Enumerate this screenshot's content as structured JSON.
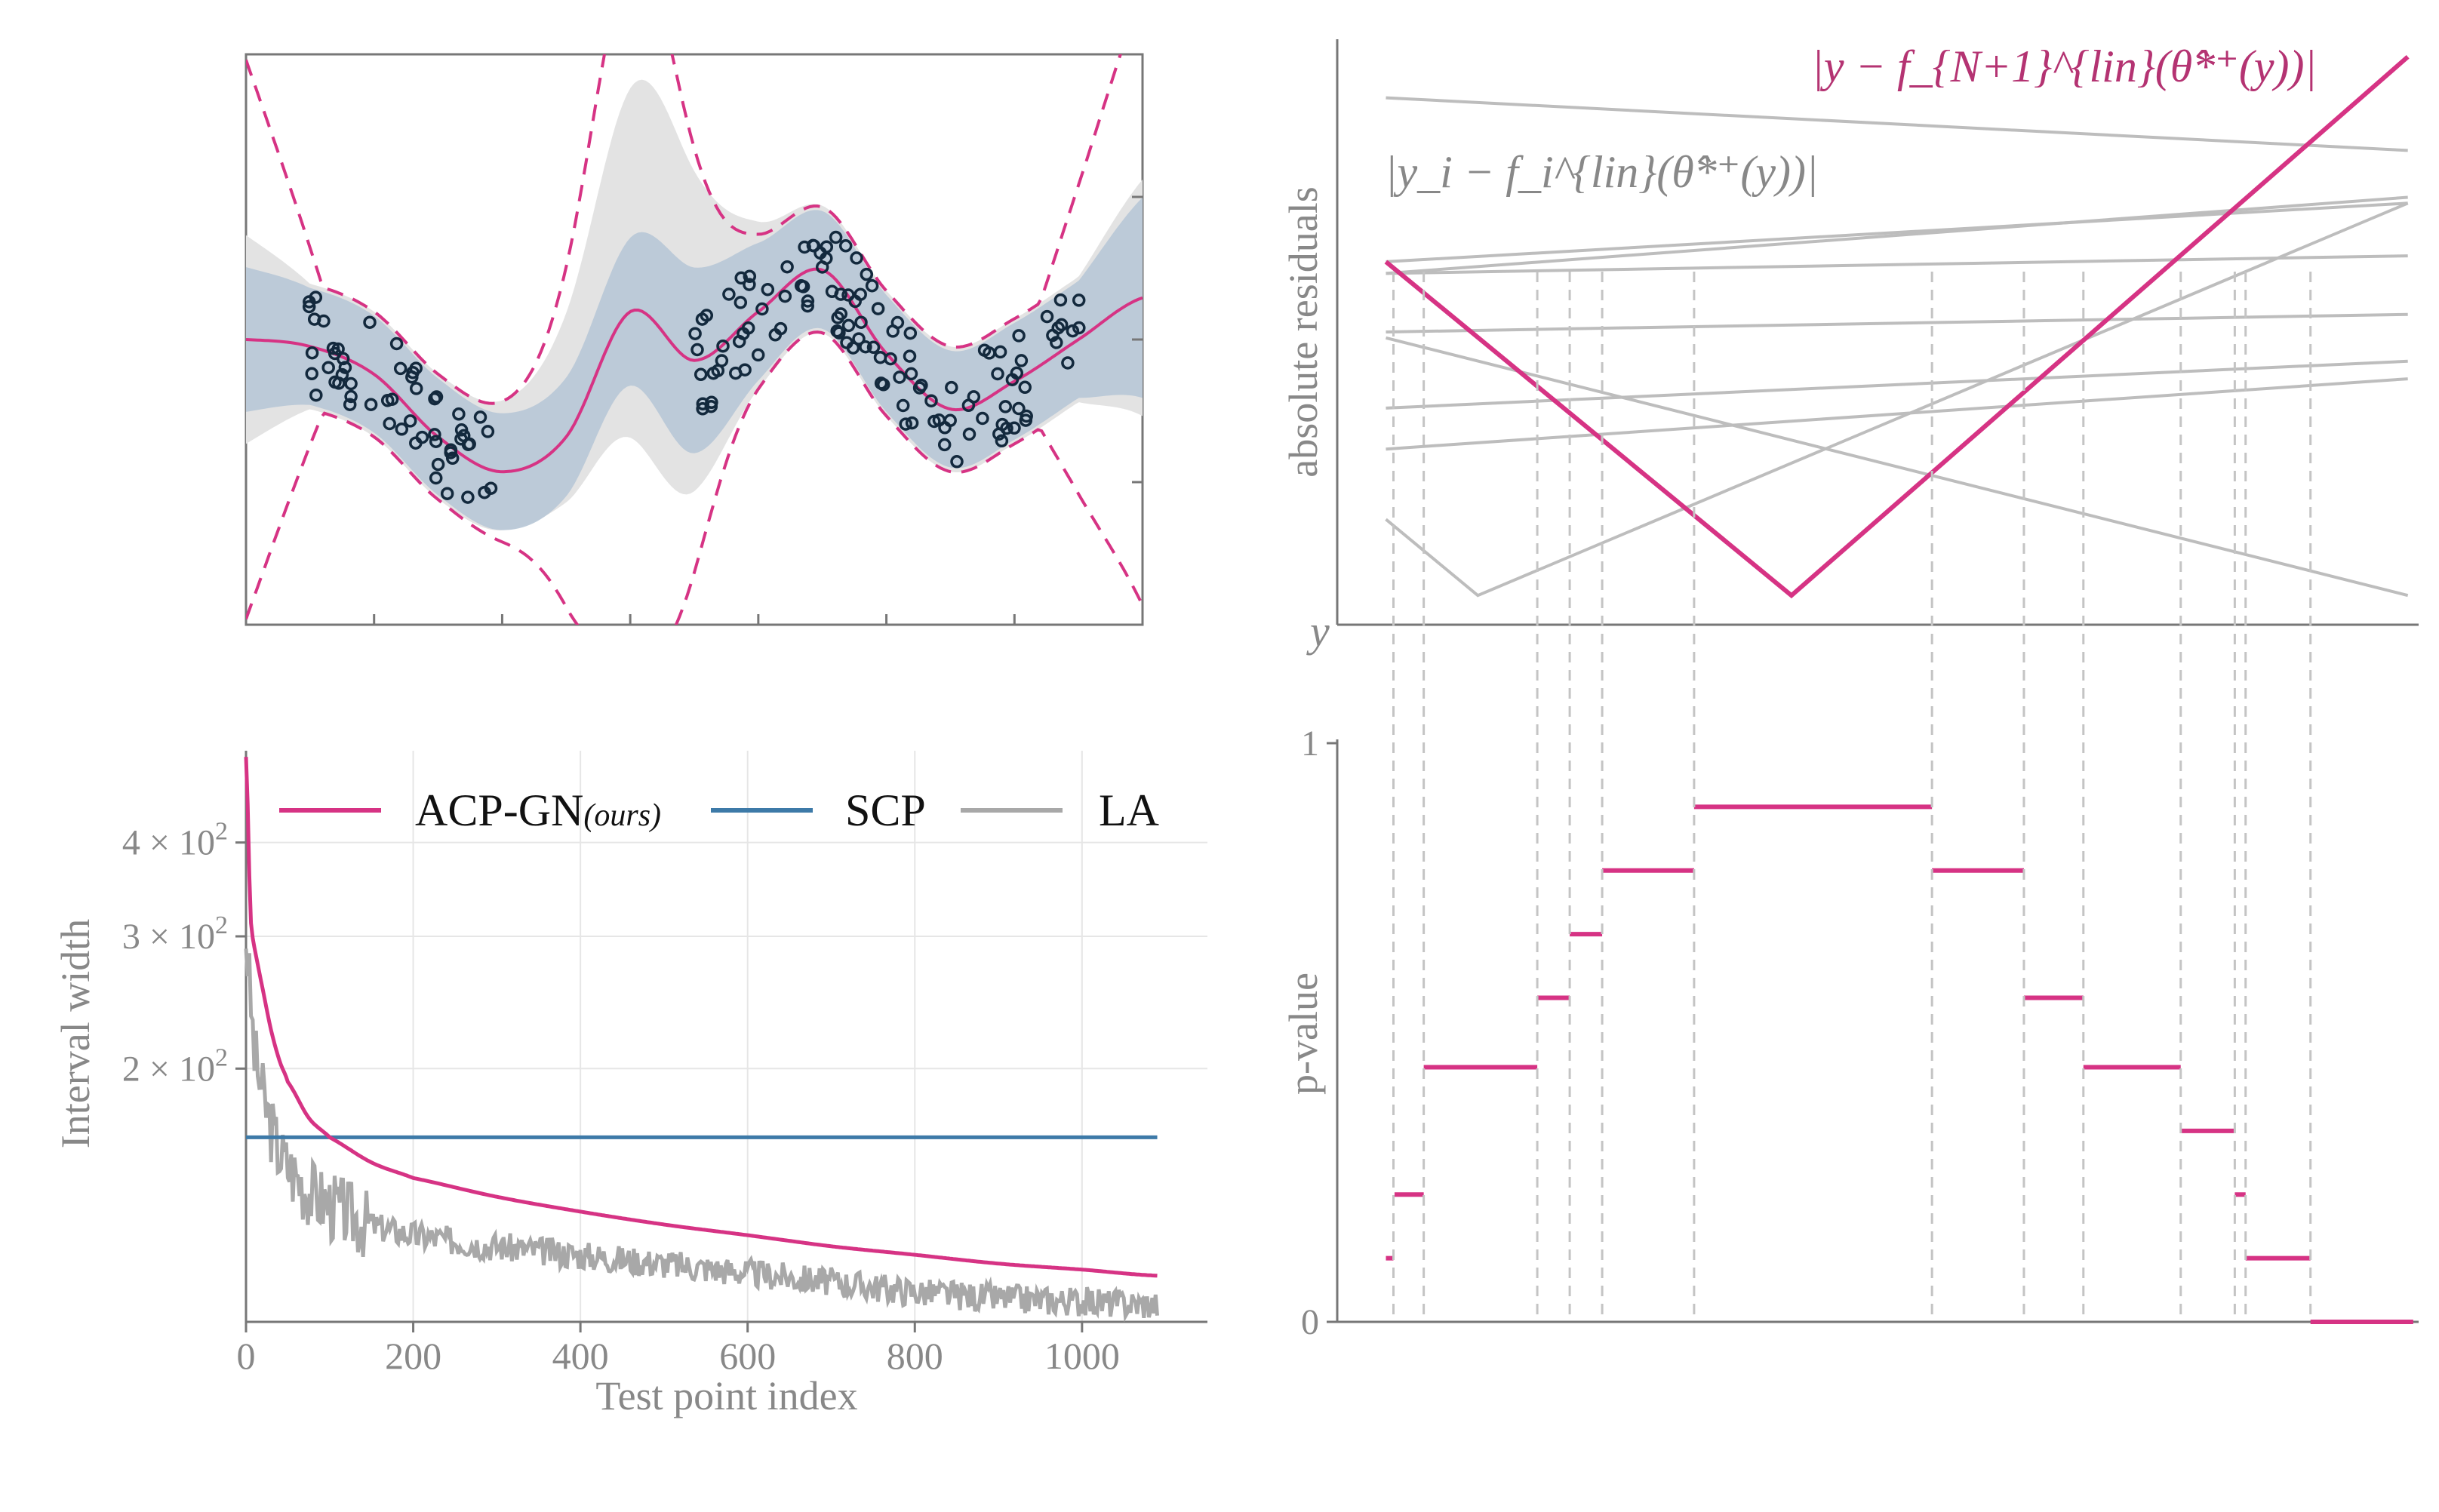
{
  "chart_data": [
    {
      "panel": "top-left",
      "type": "line",
      "title": "",
      "xlabel": "",
      "ylabel": "",
      "series": [
        {
          "name": "mean prediction",
          "color": "#d63384",
          "style": "solid",
          "x": [
            0,
            0.5,
            1.0,
            1.5,
            2.0,
            2.5,
            3.0,
            3.5,
            4.0,
            4.5,
            5.0,
            5.5,
            6.0,
            6.5,
            7.0
          ],
          "values": [
            0.25,
            0.2,
            0.0,
            -0.45,
            -0.7,
            -0.45,
            0.45,
            0.1,
            0.45,
            0.75,
            0.15,
            -0.25,
            -0.05,
            0.25,
            0.55
          ]
        },
        {
          "name": "interval bounds (ACP-GN)",
          "color": "#d63384",
          "style": "dashed"
        },
        {
          "name": "SCP band",
          "color": "#b7c6d6",
          "style": "fill"
        },
        {
          "name": "LA band",
          "color": "#e3e3e3",
          "style": "fill"
        },
        {
          "name": "training points",
          "color": "#13293d",
          "style": "open-circles"
        }
      ]
    },
    {
      "panel": "bottom-left",
      "type": "line",
      "xlabel": "Test point index",
      "ylabel": "Interval width",
      "xlim": [
        0,
        1150
      ],
      "x_ticks": [
        "0",
        "200",
        "400",
        "600",
        "800",
        "1000"
      ],
      "y_scale": "log",
      "y_ticks": [
        {
          "mant": "2",
          "exp": "2",
          "value": 200
        },
        {
          "mant": "3",
          "exp": "2",
          "value": 300
        },
        {
          "mant": "4",
          "exp": "2",
          "value": 400
        }
      ],
      "legend_position": "top",
      "legend": [
        {
          "label": "ACP-GN",
          "suffix": "(ours)",
          "color": "#d63384"
        },
        {
          "label": "SCP",
          "color": "#3d7aa8"
        },
        {
          "label": "LA",
          "color": "#a8a8a8"
        }
      ],
      "series": [
        {
          "name": "ACP-GN (ours)",
          "x": [
            0,
            5,
            10,
            20,
            30,
            40,
            50,
            75,
            100,
            150,
            200,
            300,
            400,
            500,
            600,
            700,
            800,
            900,
            1000,
            1090
          ],
          "values": [
            520,
            330,
            290,
            255,
            225,
            205,
            192,
            172,
            162,
            150,
            143,
            135,
            129,
            124,
            120,
            116,
            113,
            110,
            108,
            106
          ]
        },
        {
          "name": "SCP",
          "x": [
            0,
            1090
          ],
          "values": [
            162,
            162
          ]
        },
        {
          "name": "LA",
          "x": [
            0,
            5,
            10,
            20,
            30,
            40,
            50,
            75,
            100,
            150,
            200,
            300,
            400,
            500,
            600,
            700,
            800,
            900,
            1000,
            1090
          ],
          "values": [
            300,
            250,
            210,
            185,
            168,
            155,
            148,
            138,
            132,
            124,
            120,
            116,
            113,
            110,
            107,
            104,
            101,
            99,
            98,
            97
          ]
        }
      ]
    },
    {
      "panel": "top-right",
      "type": "line",
      "ylabel": "absolute residuals",
      "xlabel": "y",
      "annotation_new": "|y − f_{N+1}^{lin}(θ̂*⁺(y))|",
      "annotation_train": "|y_i − f_i^{lin}(θ̂*⁺(y))|",
      "new_residual": {
        "x": [
          0.045,
          0.42,
          0.99
        ],
        "values": [
          0.62,
          0.05,
          0.97
        ]
      },
      "train_residuals": [
        {
          "x": [
            0.045,
            0.99
          ],
          "values": [
            0.9,
            0.81
          ]
        },
        {
          "x": [
            0.045,
            0.99
          ],
          "values": [
            0.62,
            0.72
          ]
        },
        {
          "x": [
            0.045,
            0.99
          ],
          "values": [
            0.6,
            0.73
          ]
        },
        {
          "x": [
            0.045,
            0.99
          ],
          "values": [
            0.6,
            0.63
          ]
        },
        {
          "x": [
            0.045,
            0.99
          ],
          "values": [
            0.5,
            0.53
          ]
        },
        {
          "x": [
            0.045,
            0.99
          ],
          "values": [
            0.3,
            0.42
          ]
        },
        {
          "x": [
            0.045,
            0.99
          ],
          "values": [
            0.37,
            0.45
          ]
        },
        {
          "x": [
            0.045,
            0.99
          ],
          "values": [
            0.49,
            0.05
          ]
        },
        {
          "x": [
            0.045,
            0.13,
            0.99
          ],
          "values": [
            0.18,
            0.05,
            0.72
          ]
        }
      ]
    },
    {
      "panel": "bottom-right",
      "type": "step",
      "ylabel": "p-value",
      "y_ticks": [
        "0",
        "1"
      ],
      "ylim": [
        0,
        1
      ],
      "steps": [
        {
          "x0": 0.045,
          "x1": 0.052,
          "value": 0.11
        },
        {
          "x0": 0.053,
          "x1": 0.08,
          "value": 0.22
        },
        {
          "x0": 0.08,
          "x1": 0.185,
          "value": 0.44
        },
        {
          "x0": 0.185,
          "x1": 0.215,
          "value": 0.56
        },
        {
          "x0": 0.215,
          "x1": 0.245,
          "value": 0.67
        },
        {
          "x0": 0.245,
          "x1": 0.33,
          "value": 0.78
        },
        {
          "x0": 0.33,
          "x1": 0.55,
          "value": 0.89
        },
        {
          "x0": 0.55,
          "x1": 0.635,
          "value": 0.78
        },
        {
          "x0": 0.635,
          "x1": 0.69,
          "value": 0.56
        },
        {
          "x0": 0.69,
          "x1": 0.78,
          "value": 0.44
        },
        {
          "x0": 0.78,
          "x1": 0.83,
          "value": 0.33
        },
        {
          "x0": 0.83,
          "x1": 0.84,
          "value": 0.22
        },
        {
          "x0": 0.84,
          "x1": 0.9,
          "value": 0.11
        },
        {
          "x0": 0.9,
          "x1": 0.995,
          "value": 0.0
        }
      ],
      "breakpoints": [
        0.052,
        0.08,
        0.185,
        0.215,
        0.245,
        0.33,
        0.55,
        0.635,
        0.69,
        0.78,
        0.83,
        0.84,
        0.9
      ]
    }
  ],
  "colors": {
    "pink": "#d63384",
    "blue": "#3d7aa8",
    "gray": "#a8a8a8",
    "lightgray": "#bdbdbd",
    "axis": "#888888"
  }
}
